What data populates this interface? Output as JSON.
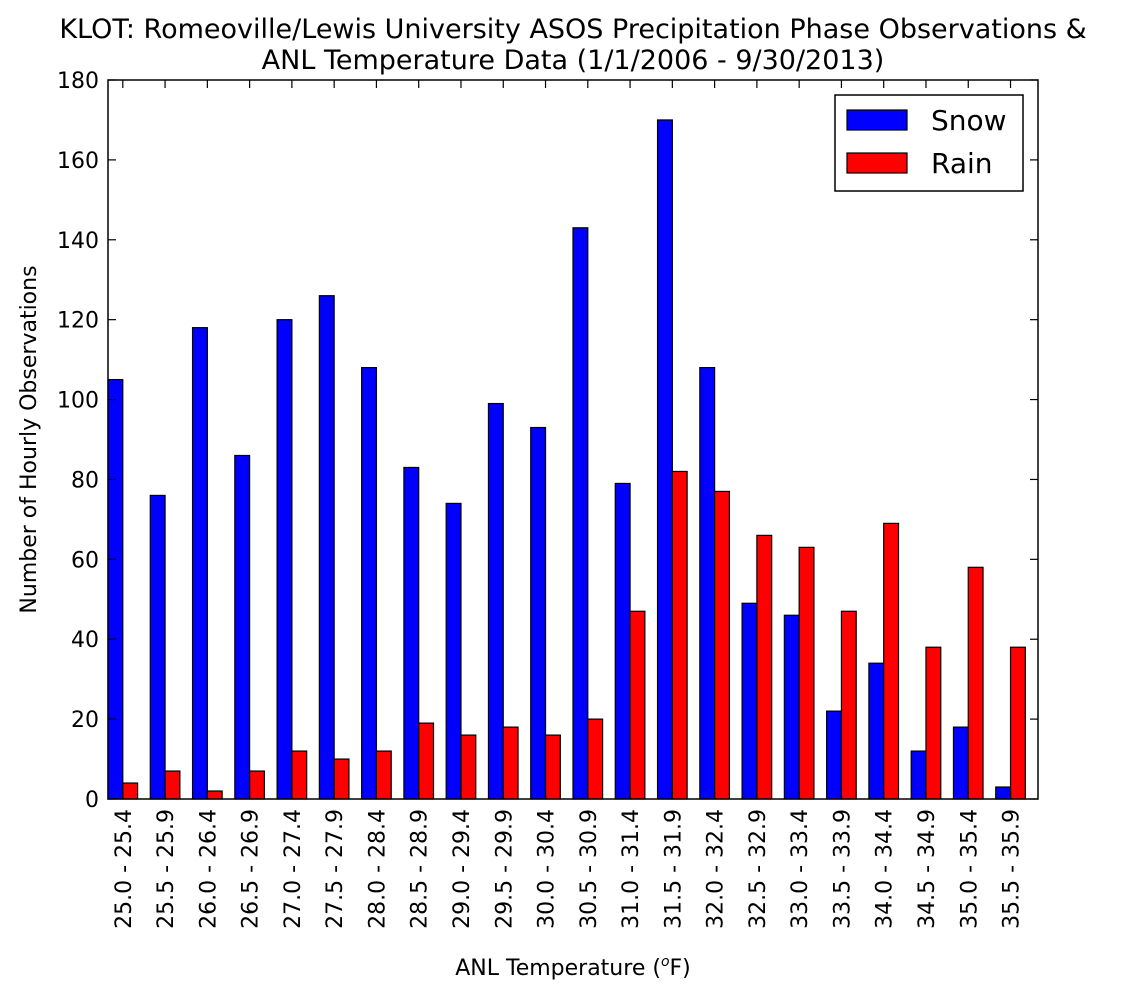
{
  "chart_data": {
    "type": "bar",
    "title": [
      "KLOT: Romeoville/Lewis University ASOS Precipitation Phase Observations &",
      "ANL Temperature Data (1/1/2006 - 9/30/2013)"
    ],
    "xlabel": "ANL Temperature (",
    "xlabel_superscript": "o",
    "xlabel_suffix": "F)",
    "ylabel": "Number of Hourly Observations",
    "ylim": [
      0,
      180
    ],
    "yticks": [
      0,
      20,
      40,
      60,
      80,
      100,
      120,
      140,
      160,
      180
    ],
    "categories": [
      "25.0 - 25.4",
      "25.5 - 25.9",
      "26.0 - 26.4",
      "26.5 - 26.9",
      "27.0 - 27.4",
      "27.5 - 27.9",
      "28.0 - 28.4",
      "28.5 - 28.9",
      "29.0 - 29.4",
      "29.5 - 29.9",
      "30.0 - 30.4",
      "30.5 - 30.9",
      "31.0 - 31.4",
      "31.5 - 31.9",
      "32.0 - 32.4",
      "32.5 - 32.9",
      "33.0 - 33.4",
      "33.5 - 33.9",
      "34.0 - 34.4",
      "34.5 - 34.9",
      "35.0 - 35.4",
      "35.5 - 35.9"
    ],
    "series": [
      {
        "name": "Snow",
        "color": "#0000ff",
        "values": [
          105,
          76,
          118,
          86,
          120,
          126,
          108,
          83,
          74,
          99,
          93,
          143,
          79,
          170,
          108,
          49,
          46,
          22,
          34,
          12,
          18,
          3
        ]
      },
      {
        "name": "Rain",
        "color": "#ff0000",
        "values": [
          4,
          7,
          2,
          7,
          12,
          10,
          12,
          19,
          16,
          18,
          16,
          20,
          47,
          82,
          77,
          66,
          63,
          47,
          69,
          38,
          58,
          38
        ]
      }
    ],
    "grid": false,
    "legend_position": "top-right"
  }
}
